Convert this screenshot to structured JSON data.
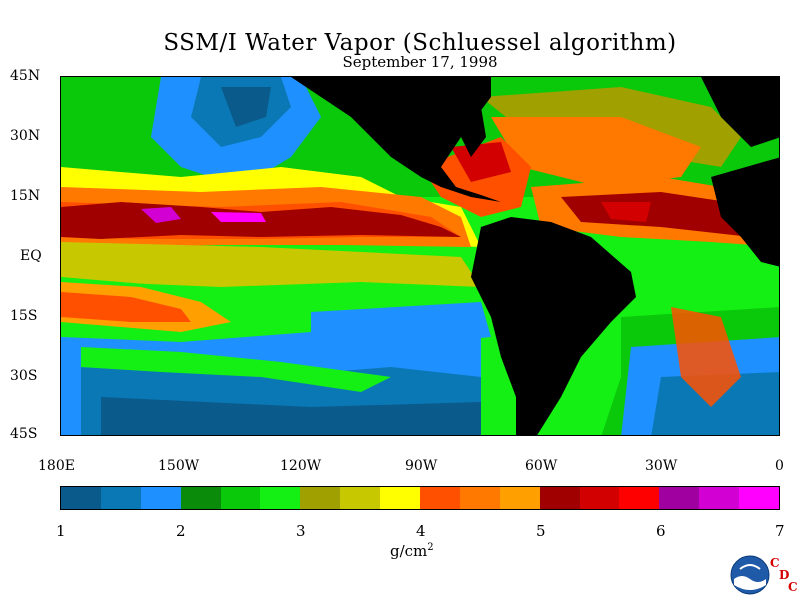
{
  "title": "SSM/I Water Vapor (Schluessel algorithm)",
  "subtitle": "September 17, 1998",
  "lat_labels": [
    "45N",
    "30N",
    "15N",
    "EQ",
    "15S",
    "30S",
    "45S"
  ],
  "lon_labels": [
    "180E",
    "150W",
    "120W",
    "90W",
    "60W",
    "30W",
    "0"
  ],
  "colorbar": {
    "colors": [
      "#0a5a8c",
      "#0a78b4",
      "#1e90ff",
      "#0a8c0a",
      "#0ac80a",
      "#14f014",
      "#a0a000",
      "#c8c800",
      "#ffff00",
      "#ff5000",
      "#ff7800",
      "#ffa000",
      "#a00000",
      "#d20000",
      "#ff0000",
      "#a000a0",
      "#d200d2",
      "#ff00ff"
    ],
    "tick_labels": [
      "1",
      "2",
      "3",
      "4",
      "5",
      "6",
      "7"
    ]
  },
  "units": "g/cm",
  "units_exp": "2",
  "logo": {
    "name": "NOAA",
    "cdc": [
      "C",
      "D",
      "C"
    ]
  },
  "land_color": "#000000"
}
